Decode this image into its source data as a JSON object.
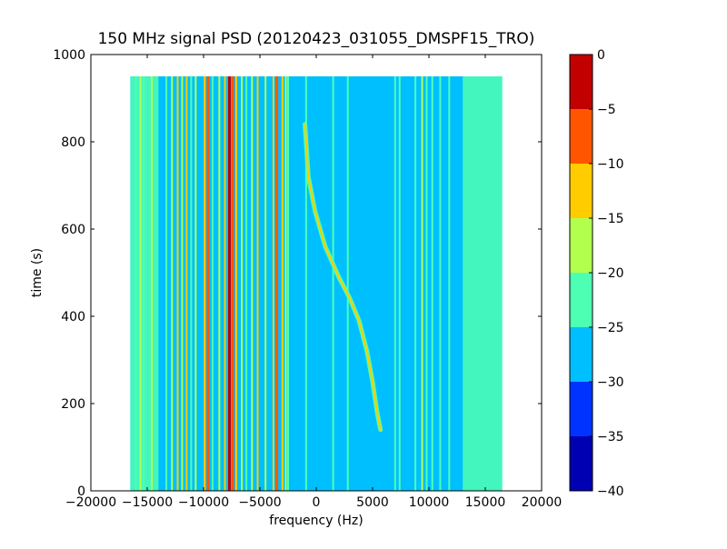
{
  "chart_data": {
    "type": "heatmap",
    "title": "150 MHz signal PSD (20120423_031055_DMSPF15_TRO)",
    "xlabel": "frequency (Hz)",
    "ylabel": "time (s)",
    "xlim": [
      -20000,
      20000
    ],
    "ylim": [
      0,
      1000
    ],
    "xticks": [
      -20000,
      -15000,
      -10000,
      -5000,
      0,
      5000,
      10000,
      15000,
      20000
    ],
    "yticks": [
      0,
      200,
      400,
      600,
      800,
      1000
    ],
    "data_extent": {
      "x": [
        -16500,
        16500
      ],
      "y": [
        0,
        950
      ]
    },
    "background_level": -27.5,
    "noise_edge_bands": [
      [
        -16500,
        -14000
      ],
      [
        13000,
        16500
      ]
    ],
    "noise_edge_level": -22.5,
    "spectral_lines": [
      {
        "x": -16000,
        "level": -22.5
      },
      {
        "x": -15600,
        "level": -17.5
      },
      {
        "x": -15300,
        "level": -22.5
      },
      {
        "x": -14600,
        "level": -17.5
      },
      {
        "x": -13300,
        "level": -22.5
      },
      {
        "x": -12800,
        "level": -17.5
      },
      {
        "x": -12300,
        "level": -12.5
      },
      {
        "x": -11900,
        "level": -17.5
      },
      {
        "x": -11500,
        "level": -12.5
      },
      {
        "x": -11100,
        "level": -22.5
      },
      {
        "x": -10700,
        "level": -17.5
      },
      {
        "x": -9900,
        "level": -12.5
      },
      {
        "x": -9600,
        "level": -7.5
      },
      {
        "x": -9200,
        "level": -22.5
      },
      {
        "x": -8600,
        "level": -17.5
      },
      {
        "x": -8100,
        "level": -12.5
      },
      {
        "x": -7700,
        "level": -2.5
      },
      {
        "x": -7400,
        "level": -7.5
      },
      {
        "x": -7100,
        "level": -12.5
      },
      {
        "x": -6600,
        "level": -17.5
      },
      {
        "x": -6200,
        "level": -22.5
      },
      {
        "x": -5700,
        "level": -17.5
      },
      {
        "x": -5200,
        "level": -12.5
      },
      {
        "x": -4500,
        "level": -17.5
      },
      {
        "x": -3800,
        "level": -12.5
      },
      {
        "x": -3500,
        "level": -7.5
      },
      {
        "x": -3000,
        "level": -12.5
      },
      {
        "x": -2700,
        "level": -17.5
      },
      {
        "x": -2500,
        "level": -22.5
      },
      {
        "x": -900,
        "level": -22.5
      },
      {
        "x": 1500,
        "level": -22.5
      },
      {
        "x": 2800,
        "level": -22.5
      },
      {
        "x": 7000,
        "level": -22.5
      },
      {
        "x": 7400,
        "level": -22.5
      },
      {
        "x": 8800,
        "level": -22.5
      },
      {
        "x": 9400,
        "level": -17.5
      },
      {
        "x": 9800,
        "level": -22.5
      },
      {
        "x": 10300,
        "level": -22.5
      },
      {
        "x": 11000,
        "level": -22.5
      },
      {
        "x": 11800,
        "level": -22.5
      }
    ],
    "doppler_trace": {
      "level": -12.5,
      "points": [
        [
          -1000,
          840
        ],
        [
          -700,
          720
        ],
        [
          -100,
          640
        ],
        [
          800,
          560
        ],
        [
          2000,
          490
        ],
        [
          3000,
          440
        ],
        [
          3800,
          390
        ],
        [
          4500,
          320
        ],
        [
          5000,
          250
        ],
        [
          5400,
          180
        ],
        [
          5700,
          140
        ]
      ]
    },
    "colorbar": {
      "levels": [
        -40,
        -35,
        -30,
        -25,
        -20,
        -15,
        -10,
        -5,
        0
      ],
      "colors": [
        "#0000b3",
        "#0033ff",
        "#00bfff",
        "#4dffb3",
        "#b3ff4d",
        "#ffcc00",
        "#ff5500",
        "#c20000"
      ],
      "tick_labels": [
        "−40",
        "−35",
        "−30",
        "−25",
        "−20",
        "−15",
        "−10",
        "−5",
        "0"
      ]
    },
    "tick_labels_x": [
      "−20000",
      "−15000",
      "−10000",
      "−5000",
      "0",
      "5000",
      "10000",
      "15000",
      "20000"
    ],
    "tick_labels_y": [
      "0",
      "200",
      "400",
      "600",
      "800",
      "1000"
    ]
  }
}
